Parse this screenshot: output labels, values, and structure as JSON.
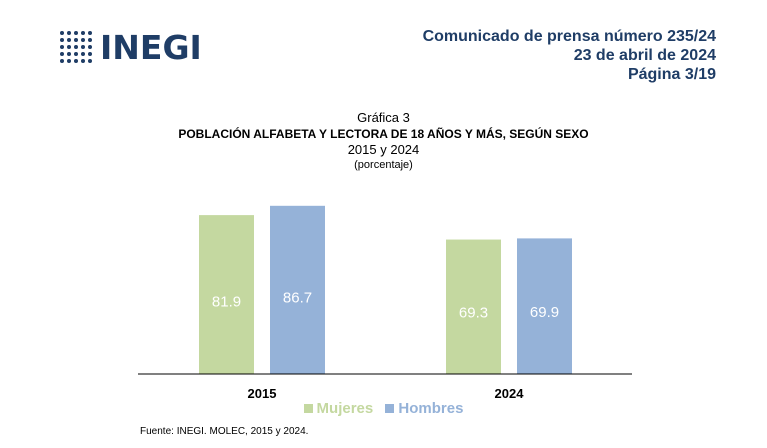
{
  "header": {
    "logo_text": "INEGI",
    "line1": "Comunicado de prensa número 235/24",
    "line2": "23 de abril de 2024",
    "line3": "Página 3/19"
  },
  "chart_data": {
    "type": "bar",
    "caption": "Gráfica 3",
    "title": "POBLACIÓN ALFABETA Y LECTORA DE 18 AÑOS Y MÁS, SEGÚN SEXO",
    "subtitle": "2015 y 2024",
    "unit": "(porcentaje)",
    "categories": [
      "2015",
      "2024"
    ],
    "series": [
      {
        "name": "Mujeres",
        "values": [
          81.9,
          69.3
        ],
        "color": "#c4d8a0"
      },
      {
        "name": "Hombres",
        "values": [
          86.7,
          69.9
        ],
        "color": "#95b2d8"
      }
    ],
    "ylim": [
      0,
      100
    ],
    "grid": false,
    "legend": "bottom-center",
    "value_label_color": "#ffffff"
  },
  "source": {
    "label": "Fuente:",
    "text": "INEGI. MOLEC, 2015 y 2024."
  }
}
